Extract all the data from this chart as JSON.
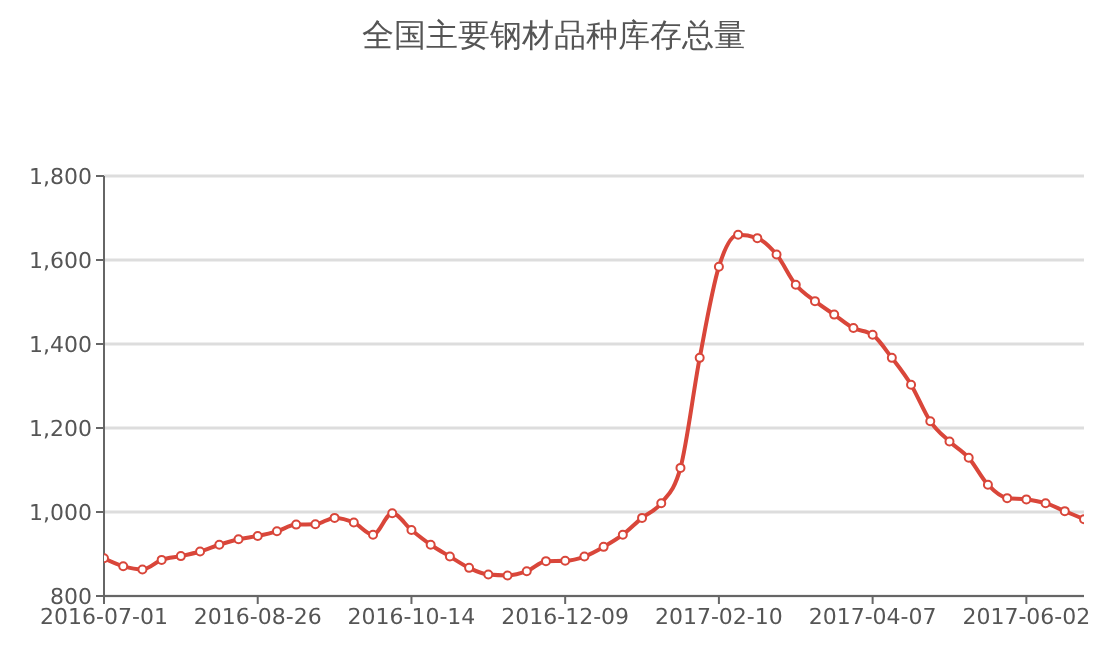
{
  "chart_data": {
    "type": "line",
    "title": "全国主要钢材品种库存总量",
    "categories": [
      "2016-07-01",
      null,
      null,
      null,
      null,
      null,
      null,
      null,
      "2016-08-26",
      null,
      null,
      null,
      null,
      null,
      null,
      null,
      "2016-10-14",
      null,
      null,
      null,
      null,
      null,
      null,
      null,
      "2016-12-09",
      null,
      null,
      null,
      null,
      null,
      null,
      null,
      "2017-02-10",
      null,
      null,
      null,
      null,
      null,
      null,
      null,
      "2017-04-07",
      null,
      null,
      null,
      null,
      null,
      null,
      null,
      "2017-06-02",
      null,
      null,
      null
    ],
    "series": [
      {
        "color": "#d9463a",
        "values": [
          890,
          871,
          863,
          886,
          895,
          906,
          922,
          935,
          943,
          954,
          970,
          971,
          986,
          975,
          946,
          997,
          957,
          922,
          894,
          867,
          851,
          849,
          859,
          883,
          884,
          894,
          917,
          946,
          986,
          1021,
          1105,
          1367,
          1584,
          1660,
          1652,
          1613,
          1541,
          1502,
          1470,
          1438,
          1422,
          1367,
          1303,
          1216,
          1168,
          1129,
          1065,
          1033,
          1030,
          1021,
          1002,
          983
        ]
      }
    ],
    "ylim": [
      800,
      1800
    ],
    "yticks": [
      800,
      {
        "value": 1000,
        "label": "1,000"
      },
      {
        "value": 1200,
        "label": "1,200"
      },
      {
        "value": 1400,
        "label": "1,400"
      },
      {
        "value": 1600,
        "label": "1,600"
      },
      {
        "value": 1800,
        "label": "1,800"
      }
    ],
    "grid": "y",
    "marker": "circle",
    "line_style": "solid"
  }
}
